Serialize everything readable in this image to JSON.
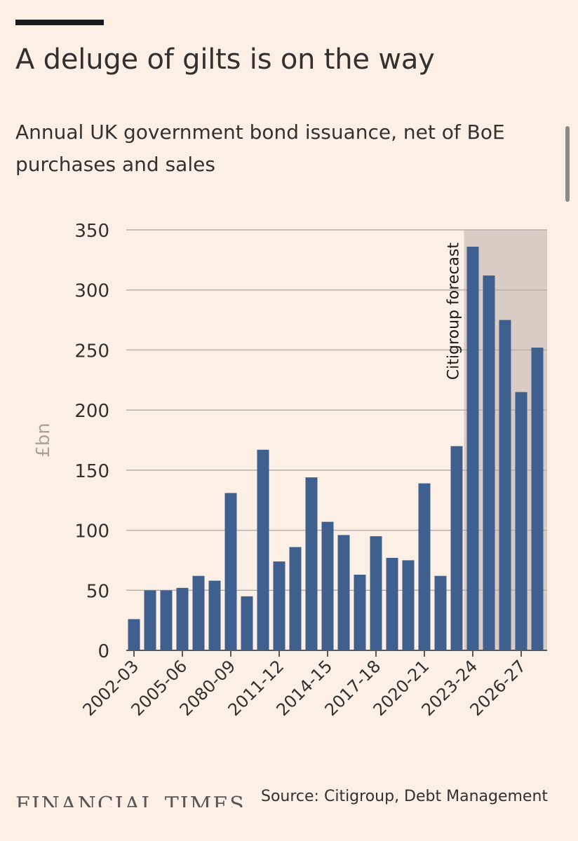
{
  "header": {
    "title": "A deluge of gilts is on the way",
    "subtitle": "Annual UK government bond issuance, net of BoE purchases and sales"
  },
  "footer": {
    "logo_text": "FINANCIAL TIMES",
    "source": "Source: Citigroup, Debt Management"
  },
  "colors": {
    "background": "#fcf0e6",
    "bar": "#3f5f8e",
    "forecast_shade": "#d8ccc4",
    "gridline": "#b8b0aa",
    "text": "#33302e",
    "axis_label": "#a9a29d"
  },
  "chart_data": {
    "type": "bar",
    "title": "A deluge of gilts is on the way",
    "ylabel": "£bn",
    "xlabel": "",
    "ylim": [
      0,
      350
    ],
    "yticks": [
      0,
      50,
      100,
      150,
      200,
      250,
      300,
      350
    ],
    "grid": true,
    "categories": [
      "2002-03",
      "2003-04",
      "2004-05",
      "2005-06",
      "2006-07",
      "2007-08",
      "2080-09",
      "2009-10",
      "2010-11",
      "2011-12",
      "2012-13",
      "2013-14",
      "2014-15",
      "2015-16",
      "2016-17",
      "2017-18",
      "2018-19",
      "2019-20",
      "2020-21",
      "2021-22",
      "2022-23",
      "2023-24",
      "2024-25",
      "2025-26",
      "2026-27",
      "2027-28"
    ],
    "tick_labels": [
      "2002-03",
      "2005-06",
      "2080-09",
      "2011-12",
      "2014-15",
      "2017-18",
      "2020-21",
      "2023-24",
      "2026-27"
    ],
    "values": [
      26,
      50,
      50,
      52,
      62,
      58,
      131,
      45,
      167,
      74,
      86,
      144,
      107,
      96,
      63,
      95,
      77,
      75,
      139,
      62,
      170,
      336,
      312,
      275,
      215,
      252
    ],
    "forecast": {
      "label": "Citigroup forecast",
      "from_category": "2023-24"
    }
  }
}
